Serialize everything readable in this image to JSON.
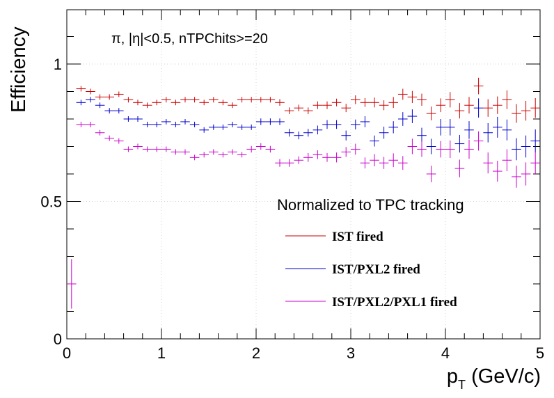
{
  "chart_data": {
    "type": "scatter",
    "annotation": "π, |η|<0.5, nTPChits>=20",
    "xlabel_main": "p",
    "xlabel_sub": "T",
    "xlabel_rest": " (GeV/c)",
    "ylabel": "Efficiency",
    "xlim": [
      0,
      5
    ],
    "ylim": [
      0,
      1.2
    ],
    "x_ticks": [
      {
        "value": 0,
        "label": "0"
      },
      {
        "value": 1,
        "label": "1"
      },
      {
        "value": 2,
        "label": "2"
      },
      {
        "value": 3,
        "label": "3"
      },
      {
        "value": 4,
        "label": "4"
      },
      {
        "value": 5,
        "label": "5"
      }
    ],
    "y_ticks": [
      {
        "value": 0,
        "label": "0"
      },
      {
        "value": 0.5,
        "label": "0.5"
      },
      {
        "value": 1,
        "label": "1"
      }
    ],
    "grid": true,
    "legend_title": "Normalized to TPC tracking",
    "legend_position": "right",
    "bin_half_width": 0.05,
    "series": [
      {
        "name": "IST fired",
        "color": "#cc0000",
        "x": [
          0.15,
          0.25,
          0.35,
          0.45,
          0.55,
          0.65,
          0.75,
          0.85,
          0.95,
          1.05,
          1.15,
          1.25,
          1.35,
          1.45,
          1.55,
          1.65,
          1.75,
          1.85,
          1.95,
          2.05,
          2.15,
          2.25,
          2.35,
          2.45,
          2.55,
          2.65,
          2.75,
          2.85,
          2.95,
          3.05,
          3.15,
          3.25,
          3.35,
          3.45,
          3.55,
          3.65,
          3.75,
          3.85,
          3.95,
          4.05,
          4.15,
          4.25,
          4.35,
          4.45,
          4.55,
          4.65,
          4.75,
          4.85,
          4.95
        ],
        "y": [
          0.91,
          0.9,
          0.88,
          0.88,
          0.89,
          0.87,
          0.86,
          0.85,
          0.86,
          0.87,
          0.86,
          0.87,
          0.87,
          0.86,
          0.87,
          0.86,
          0.85,
          0.87,
          0.87,
          0.87,
          0.87,
          0.86,
          0.83,
          0.84,
          0.83,
          0.85,
          0.85,
          0.86,
          0.84,
          0.87,
          0.86,
          0.86,
          0.85,
          0.86,
          0.89,
          0.88,
          0.87,
          0.82,
          0.85,
          0.87,
          0.83,
          0.85,
          0.92,
          0.84,
          0.85,
          0.87,
          0.82,
          0.83,
          0.84
        ],
        "yerr": [
          0.01,
          0.01,
          0.01,
          0.01,
          0.01,
          0.01,
          0.01,
          0.01,
          0.01,
          0.01,
          0.01,
          0.01,
          0.01,
          0.01,
          0.01,
          0.01,
          0.01,
          0.01,
          0.01,
          0.01,
          0.01,
          0.012,
          0.012,
          0.012,
          0.012,
          0.014,
          0.014,
          0.014,
          0.015,
          0.016,
          0.016,
          0.018,
          0.018,
          0.02,
          0.02,
          0.022,
          0.022,
          0.025,
          0.025,
          0.028,
          0.028,
          0.03,
          0.03,
          0.032,
          0.032,
          0.034,
          0.034,
          0.036,
          0.036
        ]
      },
      {
        "name": "IST/PXL2 fired",
        "color": "#0000cc",
        "x": [
          0.15,
          0.25,
          0.35,
          0.45,
          0.55,
          0.65,
          0.75,
          0.85,
          0.95,
          1.05,
          1.15,
          1.25,
          1.35,
          1.45,
          1.55,
          1.65,
          1.75,
          1.85,
          1.95,
          2.05,
          2.15,
          2.25,
          2.35,
          2.45,
          2.55,
          2.65,
          2.75,
          2.85,
          2.95,
          3.05,
          3.15,
          3.25,
          3.35,
          3.45,
          3.55,
          3.65,
          3.75,
          3.85,
          3.95,
          4.05,
          4.15,
          4.25,
          4.35,
          4.45,
          4.55,
          4.65,
          4.75,
          4.85,
          4.95
        ],
        "y": [
          0.86,
          0.87,
          0.85,
          0.83,
          0.83,
          0.8,
          0.8,
          0.78,
          0.78,
          0.79,
          0.78,
          0.79,
          0.78,
          0.76,
          0.77,
          0.77,
          0.78,
          0.77,
          0.77,
          0.79,
          0.79,
          0.79,
          0.75,
          0.74,
          0.75,
          0.76,
          0.78,
          0.78,
          0.74,
          0.78,
          0.79,
          0.72,
          0.75,
          0.77,
          0.8,
          0.81,
          0.74,
          0.7,
          0.77,
          0.77,
          0.71,
          0.76,
          0.84,
          0.75,
          0.77,
          0.76,
          0.69,
          0.7,
          0.72
        ],
        "yerr": [
          0.01,
          0.01,
          0.01,
          0.01,
          0.01,
          0.01,
          0.01,
          0.01,
          0.01,
          0.01,
          0.01,
          0.01,
          0.01,
          0.01,
          0.01,
          0.01,
          0.01,
          0.01,
          0.01,
          0.012,
          0.012,
          0.012,
          0.014,
          0.014,
          0.014,
          0.016,
          0.016,
          0.016,
          0.018,
          0.018,
          0.02,
          0.02,
          0.022,
          0.022,
          0.025,
          0.025,
          0.028,
          0.028,
          0.03,
          0.03,
          0.032,
          0.032,
          0.035,
          0.035,
          0.038,
          0.038,
          0.04,
          0.04,
          0.042
        ]
      },
      {
        "name": "IST/PXL2/PXL1 fired",
        "color": "#cc00cc",
        "x": [
          0.05,
          0.15,
          0.25,
          0.35,
          0.45,
          0.55,
          0.65,
          0.75,
          0.85,
          0.95,
          1.05,
          1.15,
          1.25,
          1.35,
          1.45,
          1.55,
          1.65,
          1.75,
          1.85,
          1.95,
          2.05,
          2.15,
          2.25,
          2.35,
          2.45,
          2.55,
          2.65,
          2.75,
          2.85,
          2.95,
          3.05,
          3.15,
          3.25,
          3.35,
          3.45,
          3.55,
          3.65,
          3.75,
          3.85,
          3.95,
          4.05,
          4.15,
          4.25,
          4.35,
          4.45,
          4.55,
          4.65,
          4.75,
          4.85,
          4.95
        ],
        "y": [
          0.2,
          0.78,
          0.78,
          0.75,
          0.73,
          0.72,
          0.69,
          0.7,
          0.69,
          0.69,
          0.69,
          0.68,
          0.68,
          0.66,
          0.67,
          0.68,
          0.67,
          0.68,
          0.67,
          0.69,
          0.7,
          0.69,
          0.64,
          0.64,
          0.65,
          0.66,
          0.67,
          0.66,
          0.66,
          0.68,
          0.69,
          0.64,
          0.65,
          0.64,
          0.65,
          0.64,
          0.7,
          0.69,
          0.6,
          0.69,
          0.69,
          0.62,
          0.69,
          0.72,
          0.64,
          0.61,
          0.65,
          0.59,
          0.6,
          0.64
        ],
        "yerr": [
          0.09,
          0.01,
          0.01,
          0.01,
          0.01,
          0.01,
          0.01,
          0.01,
          0.01,
          0.01,
          0.01,
          0.01,
          0.01,
          0.01,
          0.01,
          0.01,
          0.01,
          0.01,
          0.01,
          0.012,
          0.012,
          0.012,
          0.014,
          0.014,
          0.014,
          0.016,
          0.016,
          0.016,
          0.018,
          0.018,
          0.02,
          0.02,
          0.022,
          0.022,
          0.025,
          0.025,
          0.028,
          0.028,
          0.03,
          0.03,
          0.032,
          0.032,
          0.035,
          0.035,
          0.038,
          0.038,
          0.04,
          0.04,
          0.042,
          0.042
        ]
      }
    ]
  }
}
